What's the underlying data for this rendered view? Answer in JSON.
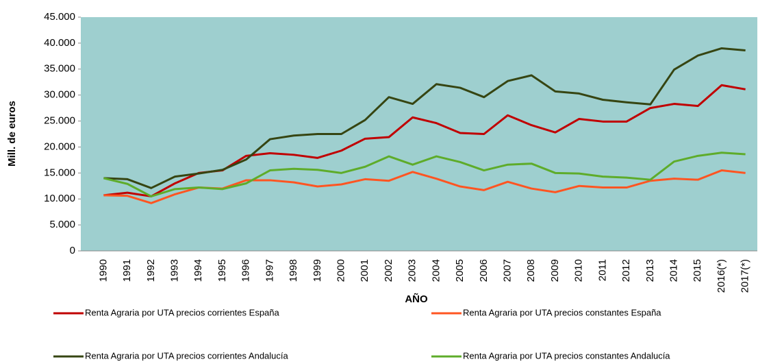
{
  "chart_data": {
    "type": "line",
    "x_label": "AÑO",
    "y_label": "Mill. de euros",
    "categories": [
      "1990",
      "1991",
      "1992",
      "1993",
      "1994",
      "1995",
      "1996",
      "1997",
      "1998",
      "1999",
      "2000",
      "2001",
      "2002",
      "2003",
      "2004",
      "2005",
      "2006",
      "2007",
      "2008",
      "2009",
      "2010",
      "2011",
      "2012",
      "2013",
      "2014",
      "2015",
      "2016(*)",
      "2017(*)"
    ],
    "series": [
      {
        "name": "Renta Agraria por UTA precios corrientes España",
        "color": "#c00000",
        "values": [
          10700,
          11200,
          10500,
          13000,
          15000,
          15500,
          18300,
          18800,
          18500,
          17900,
          19300,
          21600,
          21900,
          25700,
          24600,
          22700,
          22500,
          26100,
          24200,
          22800,
          25400,
          24900,
          24900,
          27500,
          28300,
          27900,
          31900,
          31100
        ]
      },
      {
        "name": "Renta Agraria por UTA precios constantes España",
        "color": "#ff5522",
        "values": [
          10700,
          10600,
          9200,
          10900,
          12200,
          12000,
          13600,
          13600,
          13200,
          12400,
          12800,
          13800,
          13500,
          15200,
          13900,
          12400,
          11700,
          13300,
          12000,
          11300,
          12500,
          12200,
          12200,
          13500,
          13900,
          13700,
          15500,
          15000
        ]
      },
      {
        "name": "Renta Agraria por UTA precios corrientes Andalucía",
        "color": "#364512",
        "values": [
          14000,
          13800,
          12100,
          14300,
          14900,
          15600,
          17600,
          21500,
          22200,
          22500,
          22500,
          25200,
          29600,
          28300,
          32100,
          31400,
          29600,
          32700,
          33800,
          30700,
          30300,
          29100,
          28600,
          28200,
          34900,
          37600,
          39000,
          38600
        ]
      },
      {
        "name": "Renta Agraria por UTA precios constantes Andalucía",
        "color": "#5eac2a",
        "values": [
          14000,
          12900,
          10500,
          11900,
          12200,
          11900,
          13000,
          15500,
          15800,
          15600,
          15000,
          16200,
          18200,
          16600,
          18200,
          17100,
          15500,
          16600,
          16800,
          15000,
          14900,
          14300,
          14100,
          13700,
          17200,
          18300,
          18900,
          18600
        ]
      }
    ],
    "ylim": [
      0,
      45000
    ],
    "yticks": [
      0,
      {
        "value": 5000,
        "label": "5.000"
      },
      {
        "value": 10000,
        "label": "10.000"
      },
      {
        "value": 15000,
        "label": "15.000"
      },
      {
        "value": 20000,
        "label": "20.000"
      },
      {
        "value": 25000,
        "label": "25.000"
      },
      {
        "value": 30000,
        "label": "30.000"
      },
      {
        "value": 35000,
        "label": "35.000"
      },
      {
        "value": 40000,
        "label": "40.000"
      },
      {
        "value": 45000,
        "label": "45.000"
      }
    ],
    "grid": false,
    "legend": "bottom",
    "plot_background": "#9ecfcf"
  }
}
